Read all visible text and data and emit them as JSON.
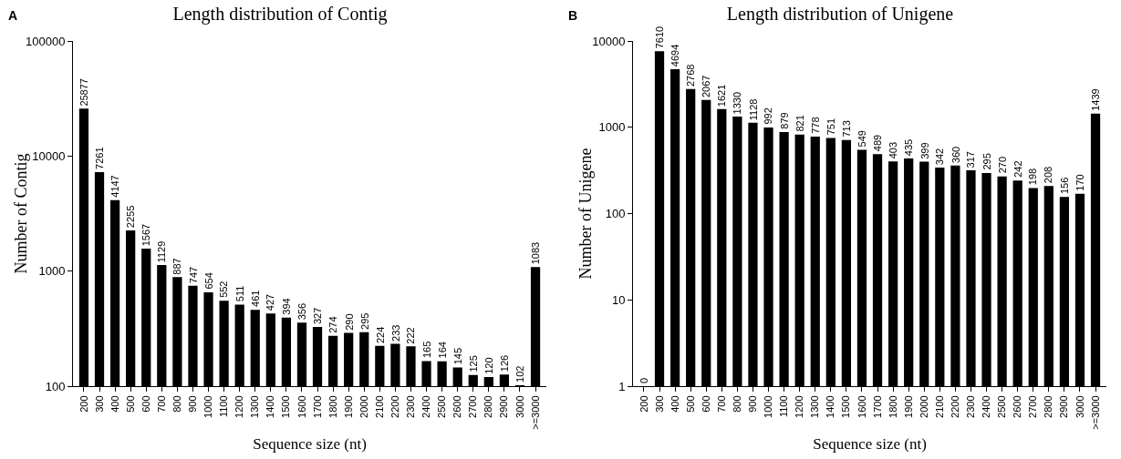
{
  "chart_data": [
    {
      "type": "bar",
      "title": "Length distribution of Contig",
      "xlabel": "Sequence size (nt)",
      "ylabel": "Number of Contig",
      "annotations": [
        "A"
      ],
      "categories": [
        "200",
        "300",
        "400",
        "500",
        "600",
        "700",
        "800",
        "900",
        "1000",
        "1100",
        "1200",
        "1300",
        "1400",
        "1500",
        "1600",
        "1700",
        "1800",
        "1900",
        "2000",
        "2100",
        "2200",
        "2300",
        "2400",
        "2500",
        "2600",
        "2700",
        "2800",
        "2900",
        "3000",
        ">=3000"
      ],
      "values": [
        25877,
        7261,
        4147,
        2255,
        1567,
        1129,
        887,
        747,
        654,
        552,
        511,
        461,
        427,
        394,
        356,
        327,
        274,
        290,
        295,
        224,
        233,
        222,
        165,
        164,
        145,
        125,
        120,
        126,
        102,
        1083
      ],
      "color": "#000000",
      "log": "y",
      "ylim": [
        100,
        100000
      ],
      "yticks": [
        100,
        1000,
        10000,
        100000
      ],
      "grid": false,
      "data_labels": true
    },
    {
      "type": "bar",
      "title": "Length distribution of Unigene",
      "xlabel": "Sequence size (nt)",
      "ylabel": "Number of Unigene",
      "annotations": [
        "B"
      ],
      "categories": [
        "200",
        "300",
        "400",
        "500",
        "600",
        "700",
        "800",
        "900",
        "1000",
        "1100",
        "1200",
        "1300",
        "1400",
        "1500",
        "1600",
        "1700",
        "1800",
        "1900",
        "2000",
        "2100",
        "2200",
        "2300",
        "2400",
        "2500",
        "2600",
        "2700",
        "2800",
        "2900",
        "3000",
        ">=3000"
      ],
      "values": [
        null,
        7610,
        4694,
        2768,
        2067,
        1621,
        1330,
        1128,
        992,
        879,
        821,
        778,
        751,
        713,
        549,
        489,
        403,
        435,
        399,
        342,
        360,
        317,
        295,
        270,
        242,
        198,
        208,
        156,
        170,
        1439
      ],
      "value_labels": [
        "0",
        "7610",
        "4694",
        "2768",
        "2067",
        "1621",
        "1330",
        "1128",
        "992",
        "879",
        "821",
        "778",
        "751",
        "713",
        "549",
        "489",
        "403",
        "435",
        "399",
        "342",
        "360",
        "317",
        "295",
        "270",
        "242",
        "198",
        "208",
        "156",
        "170",
        "1439"
      ],
      "color": "#000000",
      "log": "y",
      "ylim": [
        1,
        10000
      ],
      "yticks": [
        1,
        10,
        100,
        1000,
        10000
      ],
      "grid": false
    }
  ]
}
